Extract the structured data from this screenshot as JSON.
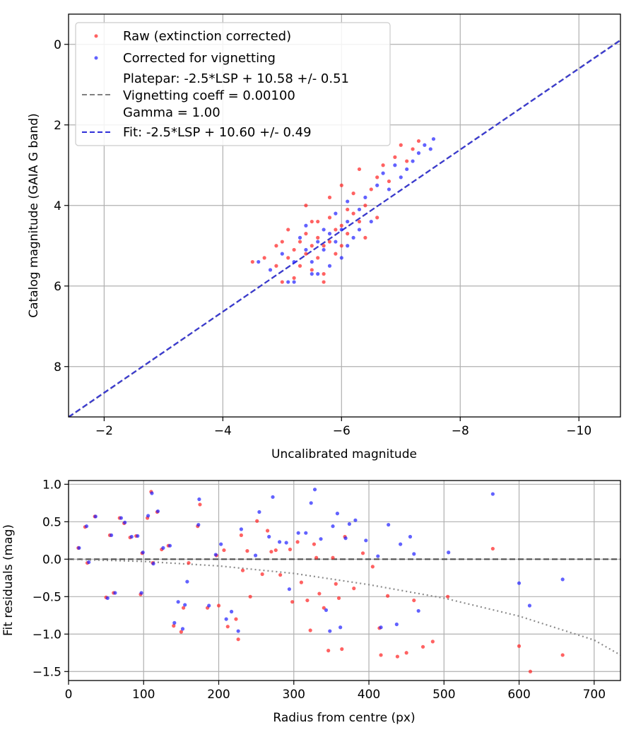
{
  "chart_data": [
    {
      "type": "scatter",
      "xlabel": "Uncalibrated magnitude",
      "ylabel": "Catalog magnitude (GAIA G band)",
      "xlim": [
        -1.4,
        -10.7
      ],
      "ylim": [
        9.25,
        -0.75
      ],
      "x_inverted": true,
      "y_inverted": true,
      "xticks": [
        -2,
        -4,
        -6,
        -8,
        -10
      ],
      "yticks": [
        0,
        2,
        4,
        6,
        8
      ],
      "grid": true,
      "legend_position": "upper-left",
      "series": [
        {
          "name": "Raw (extinction corrected)",
          "kind": "points",
          "color": "#ff2020",
          "points": [
            [
              -4.5,
              5.4
            ],
            [
              -4.7,
              5.3
            ],
            [
              -4.9,
              5.0
            ],
            [
              -4.9,
              5.5
            ],
            [
              -5.0,
              4.9
            ],
            [
              -5.1,
              4.6
            ],
            [
              -5.1,
              5.3
            ],
            [
              -5.2,
              5.1
            ],
            [
              -5.2,
              5.8
            ],
            [
              -5.3,
              4.9
            ],
            [
              -5.3,
              5.5
            ],
            [
              -5.4,
              4.7
            ],
            [
              -5.4,
              5.2
            ],
            [
              -5.5,
              5.0
            ],
            [
              -5.5,
              5.6
            ],
            [
              -5.6,
              4.4
            ],
            [
              -5.6,
              4.8
            ],
            [
              -5.6,
              5.3
            ],
            [
              -5.7,
              5.0
            ],
            [
              -5.7,
              5.7
            ],
            [
              -5.8,
              3.8
            ],
            [
              -5.8,
              4.3
            ],
            [
              -5.8,
              4.9
            ],
            [
              -5.9,
              5.2
            ],
            [
              -5.9,
              4.6
            ],
            [
              -6.0,
              4.5
            ],
            [
              -6.0,
              5.0
            ],
            [
              -6.0,
              3.5
            ],
            [
              -6.1,
              4.1
            ],
            [
              -6.1,
              4.7
            ],
            [
              -6.2,
              4.2
            ],
            [
              -6.2,
              3.7
            ],
            [
              -6.3,
              4.4
            ],
            [
              -6.3,
              3.1
            ],
            [
              -6.4,
              4.0
            ],
            [
              -6.4,
              4.8
            ],
            [
              -6.5,
              3.6
            ],
            [
              -6.6,
              3.3
            ],
            [
              -6.7,
              3.0
            ],
            [
              -6.8,
              3.4
            ],
            [
              -6.9,
              2.8
            ],
            [
              -7.0,
              2.5
            ],
            [
              -7.1,
              2.9
            ],
            [
              -7.2,
              2.6
            ],
            [
              -7.3,
              2.4
            ],
            [
              -5.4,
              4.0
            ],
            [
              -5.7,
              5.9
            ],
            [
              -6.6,
              4.3
            ],
            [
              -5.0,
              5.9
            ],
            [
              -5.5,
              4.4
            ]
          ]
        },
        {
          "name": "Corrected for vignetting",
          "kind": "points",
          "color": "#2020ff",
          "points": [
            [
              -4.6,
              5.4
            ],
            [
              -4.8,
              5.6
            ],
            [
              -5.0,
              5.2
            ],
            [
              -5.1,
              5.9
            ],
            [
              -5.2,
              5.4
            ],
            [
              -5.3,
              4.8
            ],
            [
              -5.4,
              5.1
            ],
            [
              -5.4,
              4.5
            ],
            [
              -5.5,
              5.4
            ],
            [
              -5.6,
              4.9
            ],
            [
              -5.6,
              5.7
            ],
            [
              -5.7,
              4.6
            ],
            [
              -5.7,
              5.1
            ],
            [
              -5.8,
              4.7
            ],
            [
              -5.8,
              5.5
            ],
            [
              -5.9,
              4.2
            ],
            [
              -5.9,
              4.9
            ],
            [
              -6.0,
              4.6
            ],
            [
              -6.0,
              5.3
            ],
            [
              -6.1,
              3.9
            ],
            [
              -6.1,
              4.4
            ],
            [
              -6.2,
              4.8
            ],
            [
              -6.3,
              4.1
            ],
            [
              -6.3,
              4.6
            ],
            [
              -6.4,
              3.8
            ],
            [
              -6.5,
              4.4
            ],
            [
              -6.6,
              3.5
            ],
            [
              -6.7,
              3.2
            ],
            [
              -6.8,
              3.6
            ],
            [
              -6.9,
              3.0
            ],
            [
              -7.0,
              3.3
            ],
            [
              -7.1,
              3.1
            ],
            [
              -7.2,
              2.9
            ],
            [
              -7.3,
              2.7
            ],
            [
              -7.4,
              2.5
            ],
            [
              -7.5,
              2.6
            ],
            [
              -7.55,
              2.35
            ],
            [
              -5.2,
              5.9
            ],
            [
              -6.1,
              5.0
            ],
            [
              -5.5,
              5.7
            ]
          ]
        },
        {
          "name": "Platepar: -2.5*LSP + 10.58 +/- 0.51\nVignetting coeff = 0.00100\nGamma = 1.00",
          "kind": "line",
          "style": "dashed",
          "color": "#808080",
          "x": [
            -1.4,
            -10.7
          ],
          "y": [
            9.26,
            -0.11
          ]
        },
        {
          "name": "Fit: -2.5*LSP + 10.60 +/- 0.49",
          "kind": "line",
          "style": "dashed",
          "color": "#3030d8",
          "x": [
            -1.4,
            -10.7
          ],
          "y": [
            9.25,
            -0.1
          ]
        }
      ]
    },
    {
      "type": "scatter",
      "xlabel": "Radius from centre (px)",
      "ylabel": "Fit residuals (mag)",
      "xlim": [
        0,
        735
      ],
      "ylim": [
        -1.62,
        1.05
      ],
      "xticks": [
        0,
        100,
        200,
        300,
        400,
        500,
        600,
        700
      ],
      "yticks": [
        1.0,
        0.5,
        0.0,
        -0.5,
        -1.0,
        -1.5
      ],
      "ytick_labels": [
        "1.0",
        "0.5",
        "0.0",
        "−0.5",
        "−1.0",
        "−1.5"
      ],
      "grid": true,
      "series": [
        {
          "kind": "points",
          "color": "#ff2020",
          "points": [
            [
              13,
              0.15
            ],
            [
              22,
              0.43
            ],
            [
              25,
              -0.05
            ],
            [
              35,
              0.57
            ],
            [
              50,
              -0.51
            ],
            [
              55,
              0.32
            ],
            [
              60,
              -0.45
            ],
            [
              68,
              0.55
            ],
            [
              74,
              0.48
            ],
            [
              82,
              0.29
            ],
            [
              90,
              0.31
            ],
            [
              96,
              -0.47
            ],
            [
              98,
              0.08
            ],
            [
              105,
              0.55
            ],
            [
              110,
              0.9
            ],
            [
              112,
              -0.05
            ],
            [
              118,
              0.63
            ],
            [
              124,
              0.13
            ],
            [
              133,
              0.18
            ],
            [
              140,
              -0.89
            ],
            [
              150,
              -0.97
            ],
            [
              153,
              -0.65
            ],
            [
              160,
              -0.05
            ],
            [
              172,
              0.44
            ],
            [
              175,
              0.73
            ],
            [
              185,
              -0.65
            ],
            [
              197,
              0.05
            ],
            [
              200,
              -0.62
            ],
            [
              207,
              0.12
            ],
            [
              212,
              -0.9
            ],
            [
              223,
              -0.8
            ],
            [
              226,
              -1.07
            ],
            [
              230,
              0.32
            ],
            [
              232,
              -0.15
            ],
            [
              238,
              0.11
            ],
            [
              242,
              -0.5
            ],
            [
              251,
              0.51
            ],
            [
              258,
              -0.2
            ],
            [
              265,
              0.38
            ],
            [
              270,
              0.1
            ],
            [
              276,
              0.12
            ],
            [
              282,
              -0.21
            ],
            [
              295,
              0.13
            ],
            [
              298,
              -0.57
            ],
            [
              305,
              0.23
            ],
            [
              310,
              -0.31
            ],
            [
              318,
              -0.55
            ],
            [
              322,
              -0.95
            ],
            [
              327,
              0.2
            ],
            [
              330,
              0.02
            ],
            [
              334,
              -0.46
            ],
            [
              340,
              -0.65
            ],
            [
              346,
              -1.22
            ],
            [
              352,
              0.02
            ],
            [
              356,
              -0.33
            ],
            [
              360,
              -0.52
            ],
            [
              364,
              -1.2
            ],
            [
              368,
              0.3
            ],
            [
              380,
              -0.39
            ],
            [
              392,
              0.08
            ],
            [
              405,
              -0.1
            ],
            [
              414,
              -0.92
            ],
            [
              416,
              -1.28
            ],
            [
              425,
              -0.49
            ],
            [
              438,
              -1.3
            ],
            [
              450,
              -1.25
            ],
            [
              460,
              -0.55
            ],
            [
              472,
              -1.17
            ],
            [
              485,
              -1.1
            ],
            [
              505,
              -0.5
            ],
            [
              565,
              0.14
            ],
            [
              600,
              -1.16
            ],
            [
              615,
              -1.5
            ],
            [
              658,
              -1.28
            ]
          ]
        },
        {
          "kind": "points",
          "color": "#2020ff",
          "points": [
            [
              14,
              0.15
            ],
            [
              24,
              0.44
            ],
            [
              27,
              -0.04
            ],
            [
              36,
              0.57
            ],
            [
              52,
              -0.52
            ],
            [
              57,
              0.32
            ],
            [
              62,
              -0.45
            ],
            [
              70,
              0.55
            ],
            [
              75,
              0.49
            ],
            [
              84,
              0.3
            ],
            [
              92,
              0.31
            ],
            [
              97,
              -0.45
            ],
            [
              99,
              0.09
            ],
            [
              106,
              0.58
            ],
            [
              111,
              0.88
            ],
            [
              113,
              -0.06
            ],
            [
              119,
              0.64
            ],
            [
              126,
              0.15
            ],
            [
              135,
              0.18
            ],
            [
              141,
              -0.85
            ],
            [
              146,
              -0.57
            ],
            [
              152,
              -0.93
            ],
            [
              155,
              -0.61
            ],
            [
              158,
              -0.3
            ],
            [
              173,
              0.46
            ],
            [
              174,
              0.8
            ],
            [
              187,
              -0.62
            ],
            [
              196,
              0.06
            ],
            [
              203,
              0.2
            ],
            [
              210,
              -0.8
            ],
            [
              217,
              -0.7
            ],
            [
              226,
              -0.96
            ],
            [
              230,
              0.4
            ],
            [
              249,
              0.05
            ],
            [
              254,
              0.63
            ],
            [
              267,
              0.3
            ],
            [
              272,
              0.83
            ],
            [
              281,
              0.23
            ],
            [
              290,
              0.22
            ],
            [
              294,
              -0.4
            ],
            [
              306,
              0.35
            ],
            [
              316,
              0.35
            ],
            [
              323,
              0.75
            ],
            [
              328,
              0.93
            ],
            [
              336,
              0.27
            ],
            [
              343,
              -0.68
            ],
            [
              348,
              -0.96
            ],
            [
              352,
              0.44
            ],
            [
              358,
              0.61
            ],
            [
              362,
              -0.91
            ],
            [
              369,
              0.28
            ],
            [
              374,
              0.47
            ],
            [
              382,
              0.52
            ],
            [
              396,
              0.25
            ],
            [
              412,
              0.04
            ],
            [
              416,
              -0.91
            ],
            [
              426,
              0.46
            ],
            [
              437,
              -0.87
            ],
            [
              442,
              0.2
            ],
            [
              455,
              0.3
            ],
            [
              460,
              0.07
            ],
            [
              466,
              -0.69
            ],
            [
              506,
              0.09
            ],
            [
              565,
              0.87
            ],
            [
              600,
              -0.32
            ],
            [
              614,
              -0.62
            ],
            [
              658,
              -0.27
            ]
          ]
        },
        {
          "kind": "line",
          "style": "dashed",
          "color": "#404040",
          "x": [
            0,
            735
          ],
          "y": [
            0.0,
            0.0
          ]
        },
        {
          "kind": "line",
          "style": "dotted",
          "color": "#808080",
          "x": [
            0,
            100,
            200,
            300,
            400,
            500,
            600,
            700,
            735
          ],
          "y": [
            0.0,
            -0.03,
            -0.09,
            -0.19,
            -0.34,
            -0.52,
            -0.76,
            -1.08,
            -1.28
          ]
        }
      ]
    }
  ]
}
